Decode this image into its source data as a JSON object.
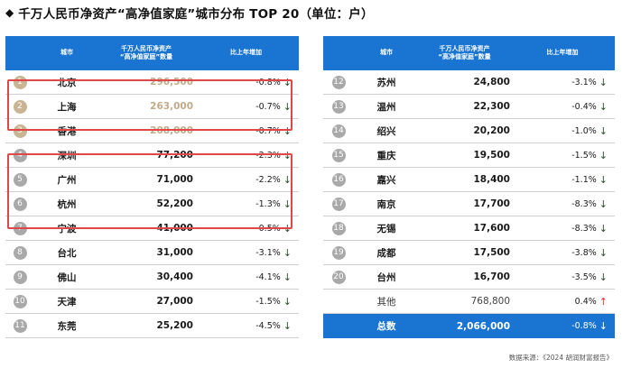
{
  "header": {
    "diamond": "◆",
    "title": "千万人民币净资产“高净值家庭”城市分布 TOP 20（单位：户）"
  },
  "columns": {
    "city": "城市",
    "count_line1": "千万人民币净资产",
    "count_line2": "“高净值家庭”数量",
    "change": "比上年增加"
  },
  "left_rows": [
    {
      "rank": "1",
      "city": "北京",
      "count": "296,500",
      "change": "-0.8%",
      "dir": "down",
      "tier": "gold"
    },
    {
      "rank": "2",
      "city": "上海",
      "count": "263,000",
      "change": "-0.7%",
      "dir": "down",
      "tier": "gold"
    },
    {
      "rank": "3",
      "city": "香港",
      "count": "208,000",
      "change": "-0.7%",
      "dir": "down",
      "tier": "gold"
    },
    {
      "rank": "4",
      "city": "深圳",
      "count": "77,200",
      "change": "-2.3%",
      "dir": "down",
      "tier": "grey"
    },
    {
      "rank": "5",
      "city": "广州",
      "count": "71,000",
      "change": "-2.2%",
      "dir": "down",
      "tier": "grey"
    },
    {
      "rank": "6",
      "city": "杭州",
      "count": "52,200",
      "change": "-1.3%",
      "dir": "down",
      "tier": "grey"
    },
    {
      "rank": "7",
      "city": "宁波",
      "count": "41,000",
      "change": "-0.5%",
      "dir": "down",
      "tier": "grey"
    },
    {
      "rank": "8",
      "city": "台北",
      "count": "31,000",
      "change": "-3.1%",
      "dir": "down",
      "tier": "grey"
    },
    {
      "rank": "9",
      "city": "佛山",
      "count": "30,400",
      "change": "-4.1%",
      "dir": "down",
      "tier": "grey"
    },
    {
      "rank": "10",
      "city": "天津",
      "count": "27,000",
      "change": "-1.5%",
      "dir": "down",
      "tier": "grey"
    },
    {
      "rank": "11",
      "city": "东莞",
      "count": "25,200",
      "change": "-4.5%",
      "dir": "down",
      "tier": "grey"
    }
  ],
  "right_rows": [
    {
      "rank": "12",
      "city": "苏州",
      "count": "24,800",
      "change": "-3.1%",
      "dir": "down"
    },
    {
      "rank": "13",
      "city": "温州",
      "count": "22,300",
      "change": "-0.4%",
      "dir": "down"
    },
    {
      "rank": "14",
      "city": "绍兴",
      "count": "20,200",
      "change": "-1.0%",
      "dir": "down"
    },
    {
      "rank": "15",
      "city": "重庆",
      "count": "19,500",
      "change": "-1.5%",
      "dir": "down"
    },
    {
      "rank": "16",
      "city": "嘉兴",
      "count": "18,400",
      "change": "-1.1%",
      "dir": "down"
    },
    {
      "rank": "17",
      "city": "南京",
      "count": "17,700",
      "change": "-8.3%",
      "dir": "down"
    },
    {
      "rank": "18",
      "city": "无锡",
      "count": "17,600",
      "change": "-8.3%",
      "dir": "down"
    },
    {
      "rank": "19",
      "city": "成都",
      "count": "17,500",
      "change": "-3.8%",
      "dir": "down"
    },
    {
      "rank": "20",
      "city": "台州",
      "count": "16,700",
      "change": "-3.5%",
      "dir": "down"
    }
  ],
  "other_row": {
    "city": "其他",
    "count": "768,800",
    "change": "0.4%",
    "dir": "up"
  },
  "total_row": {
    "city": "总数",
    "count": "2,066,000",
    "change": "-0.8%",
    "dir": "down"
  },
  "arrows": {
    "down": "↓",
    "up": "↑"
  },
  "source": "数据来源：《2024 胡润财富报告》",
  "colors": {
    "header_blue": "#1a75d2",
    "gold": "#c2ab8a",
    "highlight_red": "#e04848",
    "up_red": "#e03030"
  }
}
